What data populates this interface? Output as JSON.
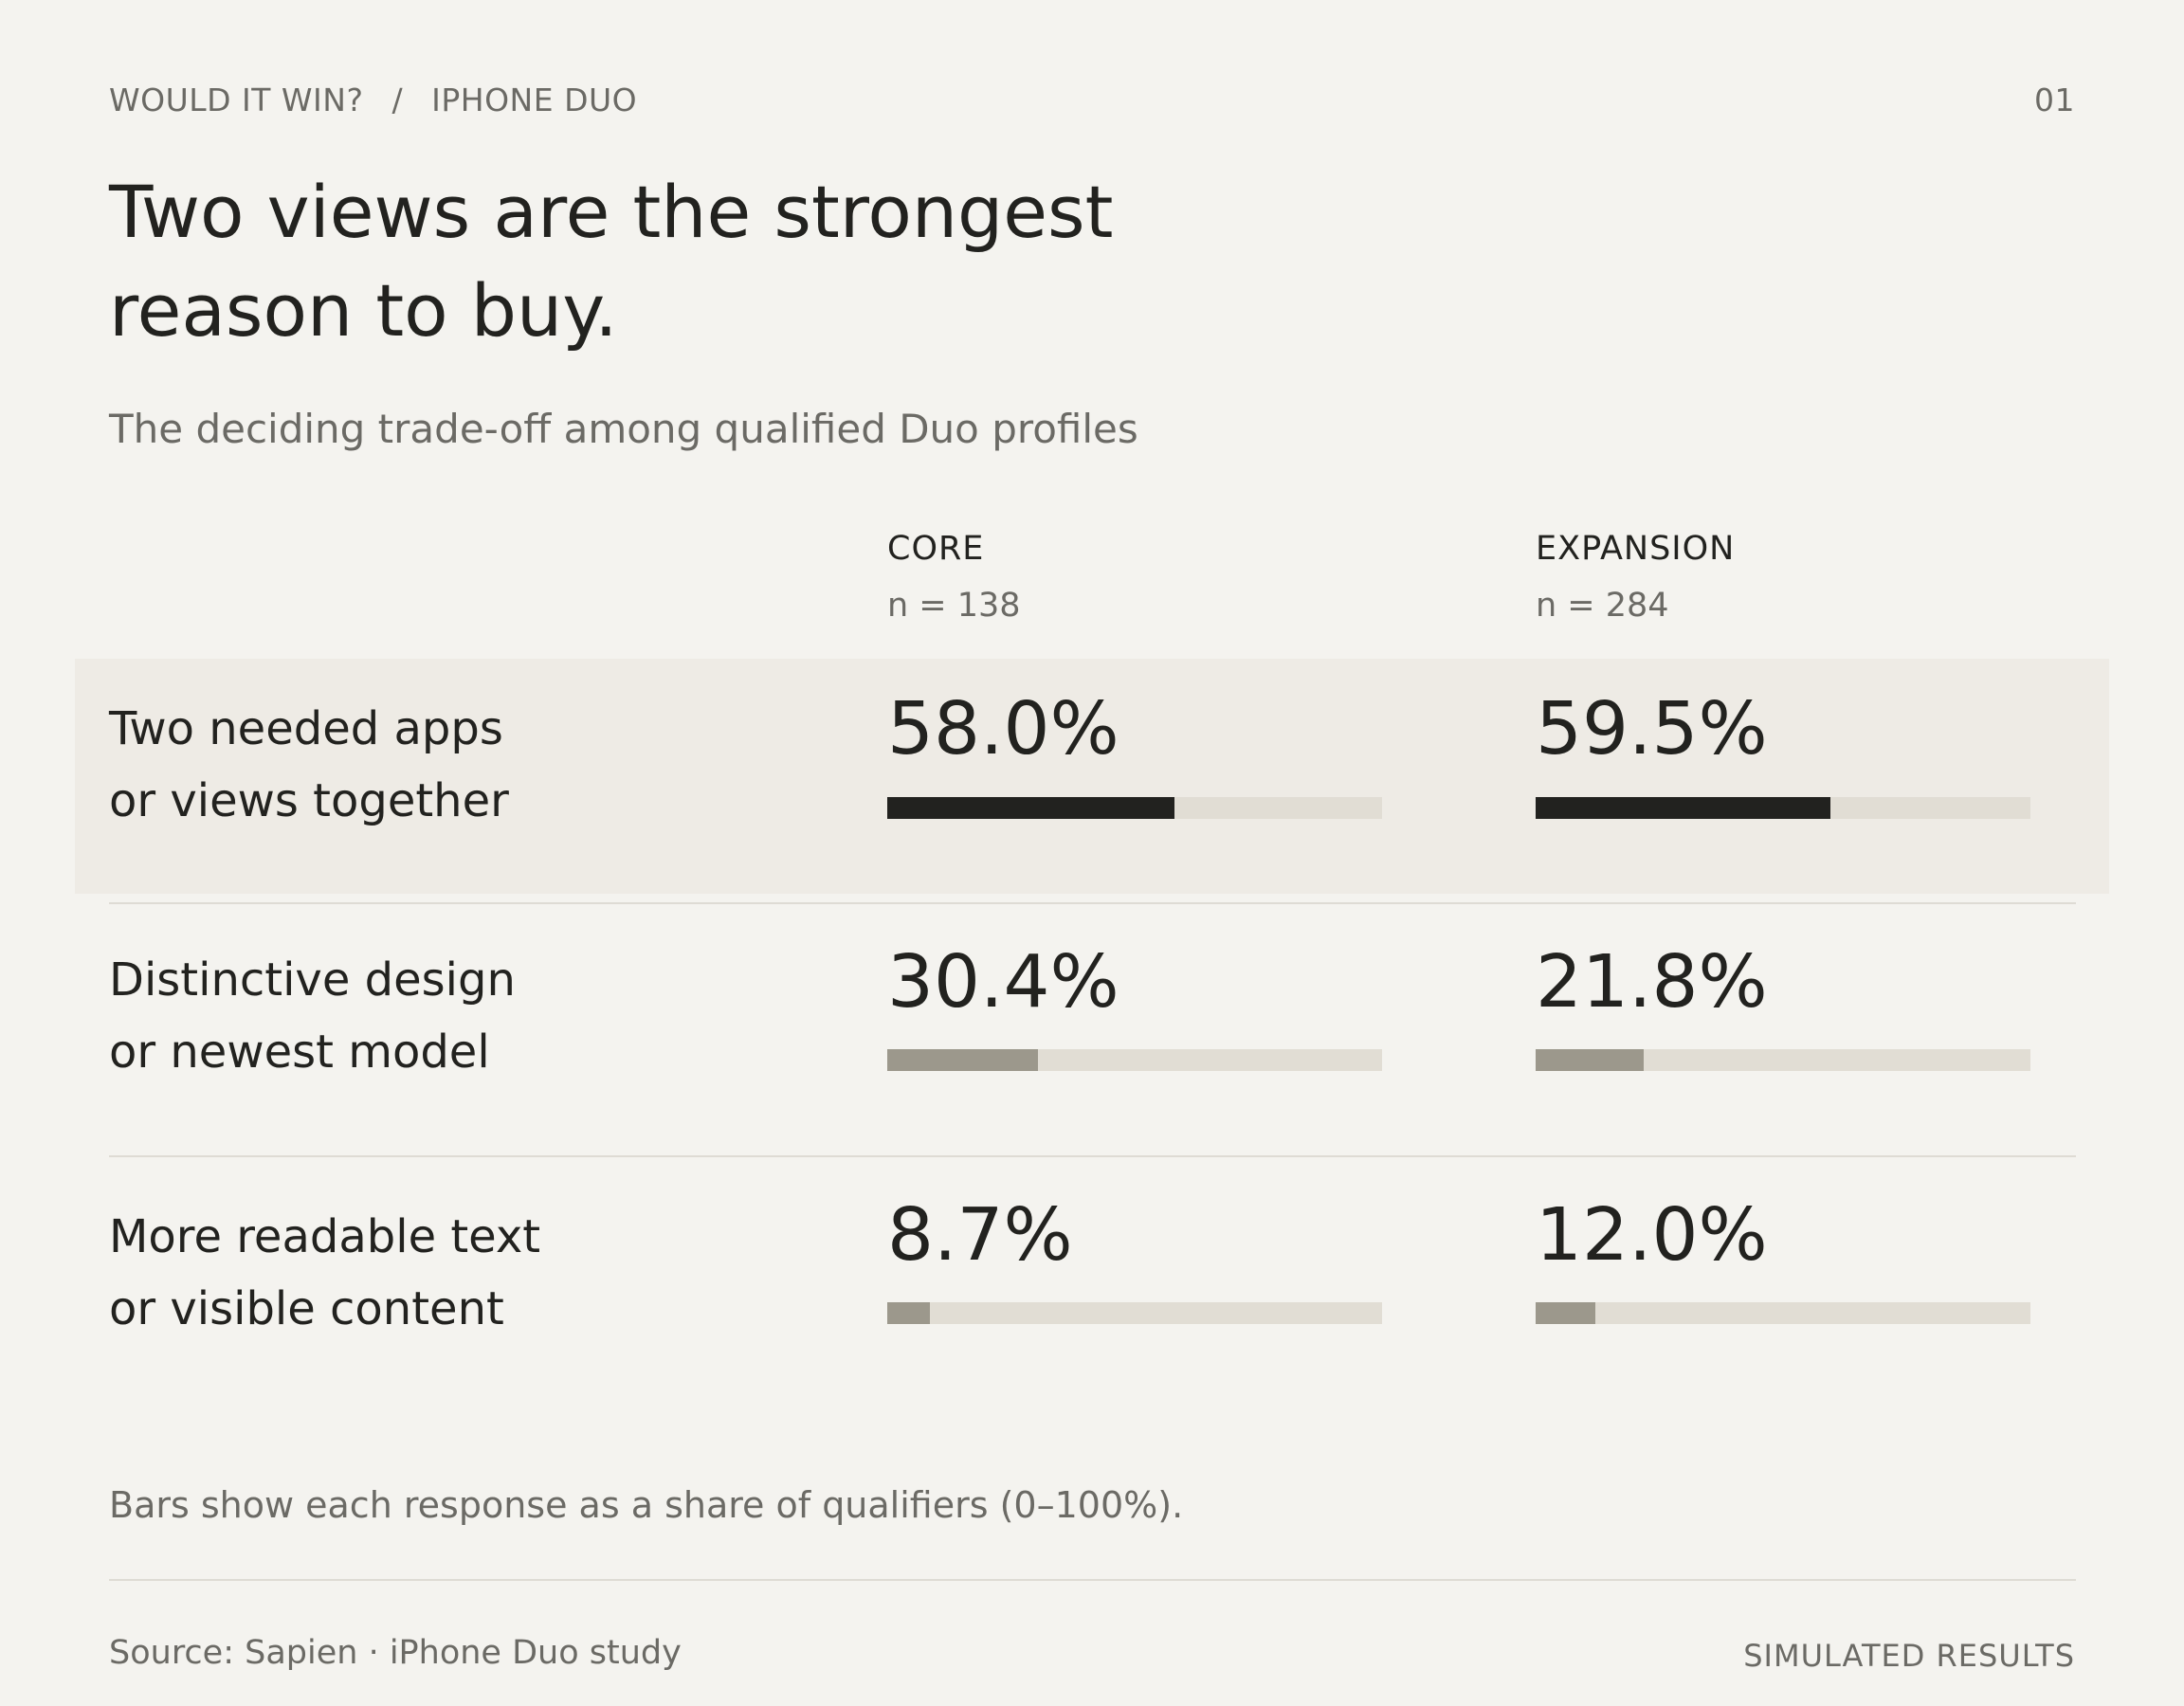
{
  "header": {
    "crumb_1": "WOULD IT WIN?",
    "crumb_sep": "/",
    "crumb_2": "IPHONE DUO",
    "page_number": "01"
  },
  "title_line_1": "Two views are the strongest",
  "title_line_2": "reason to buy.",
  "subtitle": "The deciding trade-off among qualified Duo profiles",
  "chart_data": {
    "type": "bar",
    "ylim": [
      0,
      100
    ],
    "series": [
      {
        "name": "CORE",
        "n_label": "n = 138",
        "values": [
          58.0,
          30.4,
          8.7
        ]
      },
      {
        "name": "EXPANSION",
        "n_label": "n = 284",
        "values": [
          59.5,
          21.8,
          12.0
        ]
      }
    ],
    "rows": [
      {
        "line_1": "Two needed apps",
        "line_2": "or views together",
        "highlight": true,
        "labels": [
          "58.0%",
          "59.5%"
        ]
      },
      {
        "line_1": "Distinctive design",
        "line_2": "or newest model",
        "highlight": false,
        "labels": [
          "30.4%",
          "21.8%"
        ]
      },
      {
        "line_1": "More readable text",
        "line_2": "or visible content",
        "highlight": false,
        "labels": [
          "8.7%",
          "12.0%"
        ]
      }
    ],
    "colors": {
      "highlight_fill": "#22221f",
      "default_fill": "#9c988c",
      "track": "#e1ddd4",
      "highlight_row_bg": "#eeebe5"
    }
  },
  "note": "Bars show each response as a share of qualifiers (0–100%).",
  "footer": {
    "source": "Source: Sapien · iPhone Duo study",
    "tag": "SIMULATED RESULTS"
  }
}
